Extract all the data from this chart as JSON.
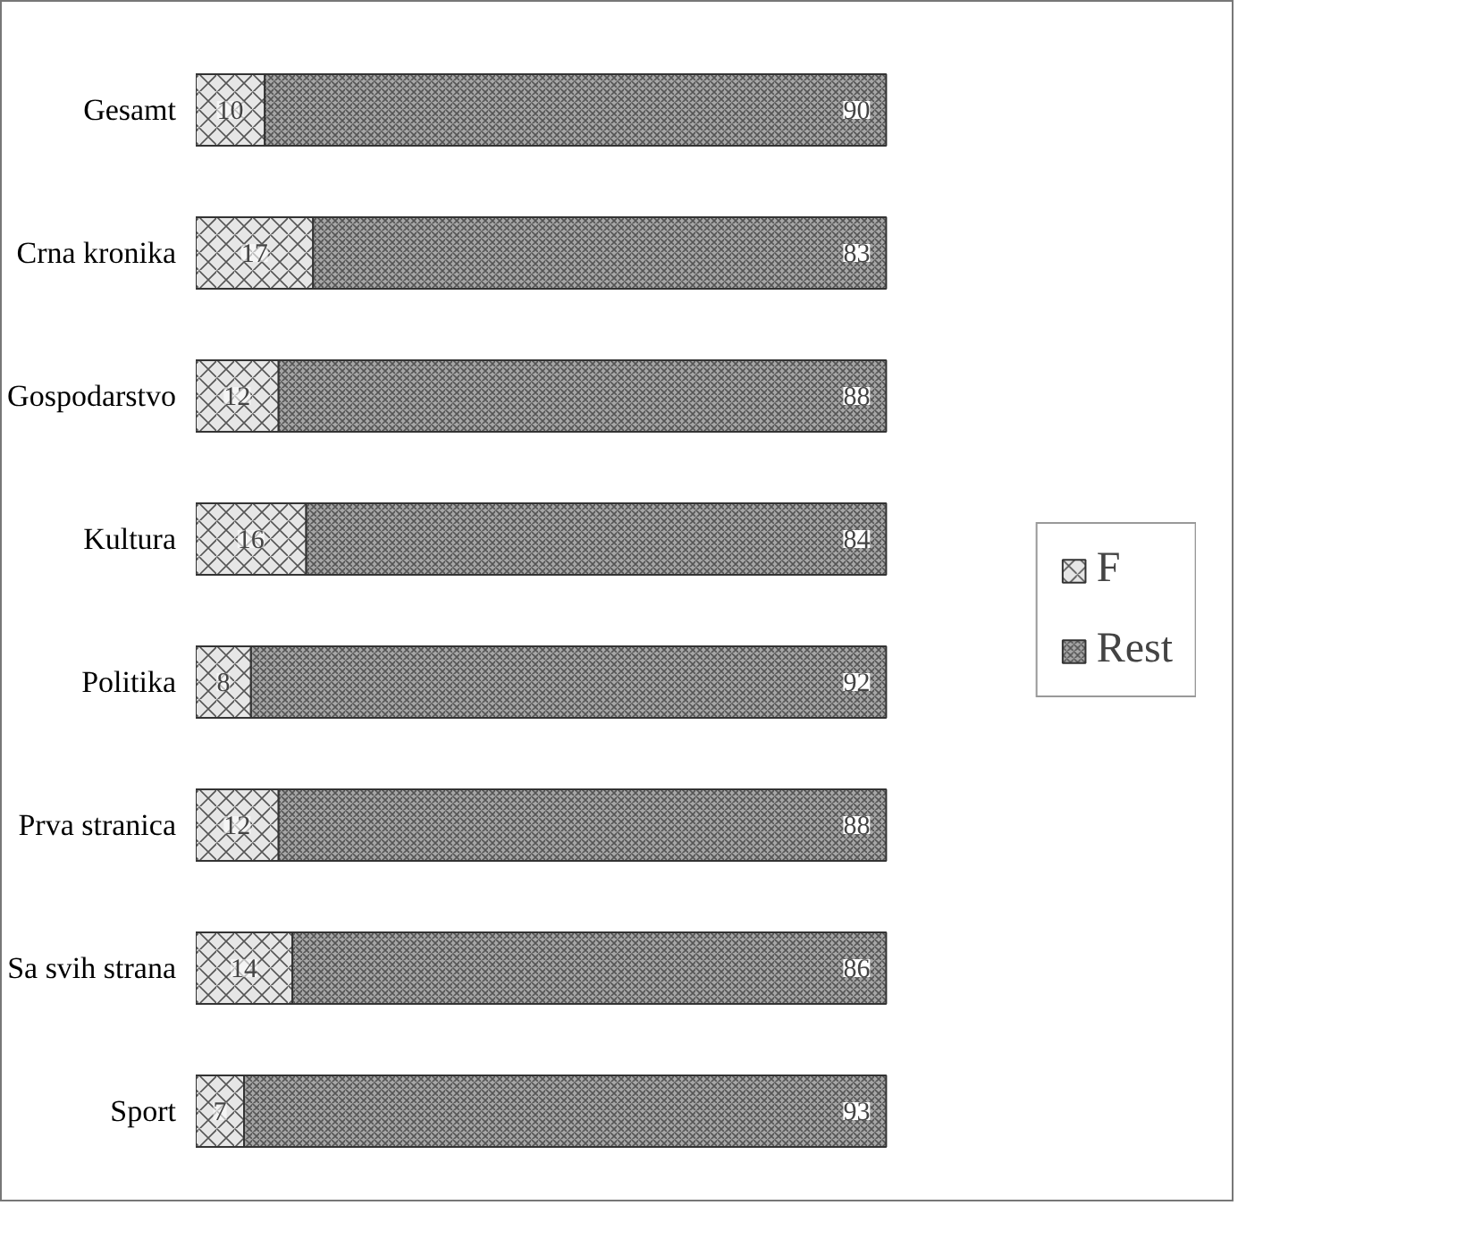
{
  "chart_data": {
    "type": "bar",
    "orientation": "horizontal",
    "stacked": true,
    "data_labels": true,
    "legend": "right",
    "grid": false,
    "categories": [
      "Gesamt",
      "Crna kronika",
      "Gospodarstvo",
      "Kultura",
      "Politika",
      "Prva stranica",
      "Sa svih strana",
      "Sport"
    ],
    "series": [
      {
        "name": "F",
        "color": "#e6e6e6",
        "values": [
          10,
          17,
          12,
          16,
          8,
          12,
          14,
          7
        ]
      },
      {
        "name": "Rest",
        "color": "#a6a6a6",
        "values": [
          90,
          83,
          88,
          84,
          92,
          88,
          86,
          93
        ]
      }
    ]
  }
}
